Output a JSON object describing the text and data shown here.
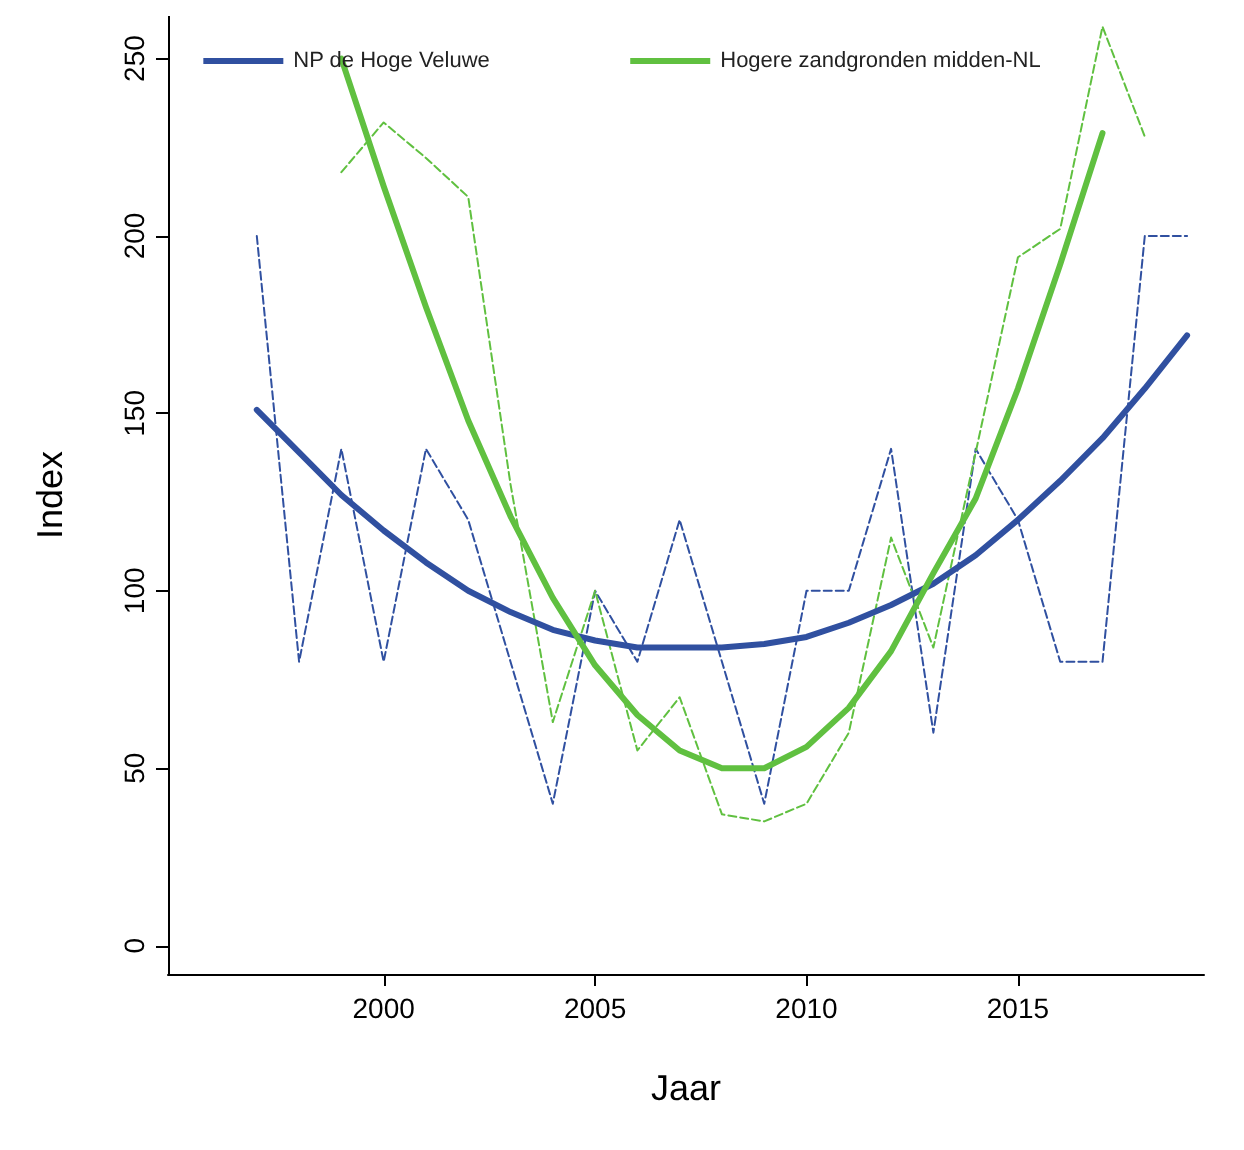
{
  "chart_data": {
    "type": "line",
    "xlabel": "Jaar",
    "ylabel": "Index",
    "x": [
      1997,
      1998,
      1999,
      2000,
      2001,
      2002,
      2003,
      2004,
      2005,
      2006,
      2007,
      2008,
      2009,
      2010,
      2011,
      2012,
      2013,
      2014,
      2015,
      2016,
      2017,
      2018,
      2019
    ],
    "series": [
      {
        "color": "#3050a0",
        "line_style": "dashed",
        "values": [
          200,
          80,
          140,
          80,
          140,
          120,
          80,
          40,
          100,
          80,
          120,
          80,
          40,
          100,
          100,
          140,
          60,
          140,
          120,
          80,
          80,
          200,
          200
        ]
      },
      {
        "color": "#60c040",
        "line_style": "dashed",
        "values": [
          null,
          null,
          218,
          232,
          222,
          211,
          130,
          63,
          100,
          55,
          70,
          37,
          35,
          40,
          60,
          115,
          84,
          139,
          194,
          202,
          259,
          228,
          null
        ]
      },
      {
        "name": "NP de Hoge Veluwe",
        "color": "#3050a0",
        "line_style": "solid",
        "values": [
          151,
          139,
          127,
          117,
          108,
          100,
          94,
          89,
          86,
          84,
          84,
          84,
          85,
          87,
          91,
          96,
          102,
          110,
          120,
          131,
          143,
          157,
          172
        ]
      },
      {
        "name": "Hogere zandgronden midden-NL",
        "color": "#60c040",
        "line_style": "solid",
        "values": [
          null,
          null,
          250,
          214,
          180,
          148,
          121,
          98,
          79,
          65,
          55,
          50,
          50,
          56,
          67,
          83,
          105,
          126,
          157,
          192,
          229,
          null,
          null
        ]
      }
    ],
    "xlim": [
      1994.9,
      2019.4
    ],
    "xticks": [
      2000,
      2005,
      2010,
      2015
    ],
    "ylim": [
      -8,
      262
    ],
    "yticks": [
      0,
      50,
      100,
      150,
      200,
      250
    ],
    "grid": false,
    "legend": "top",
    "marker": "none"
  }
}
